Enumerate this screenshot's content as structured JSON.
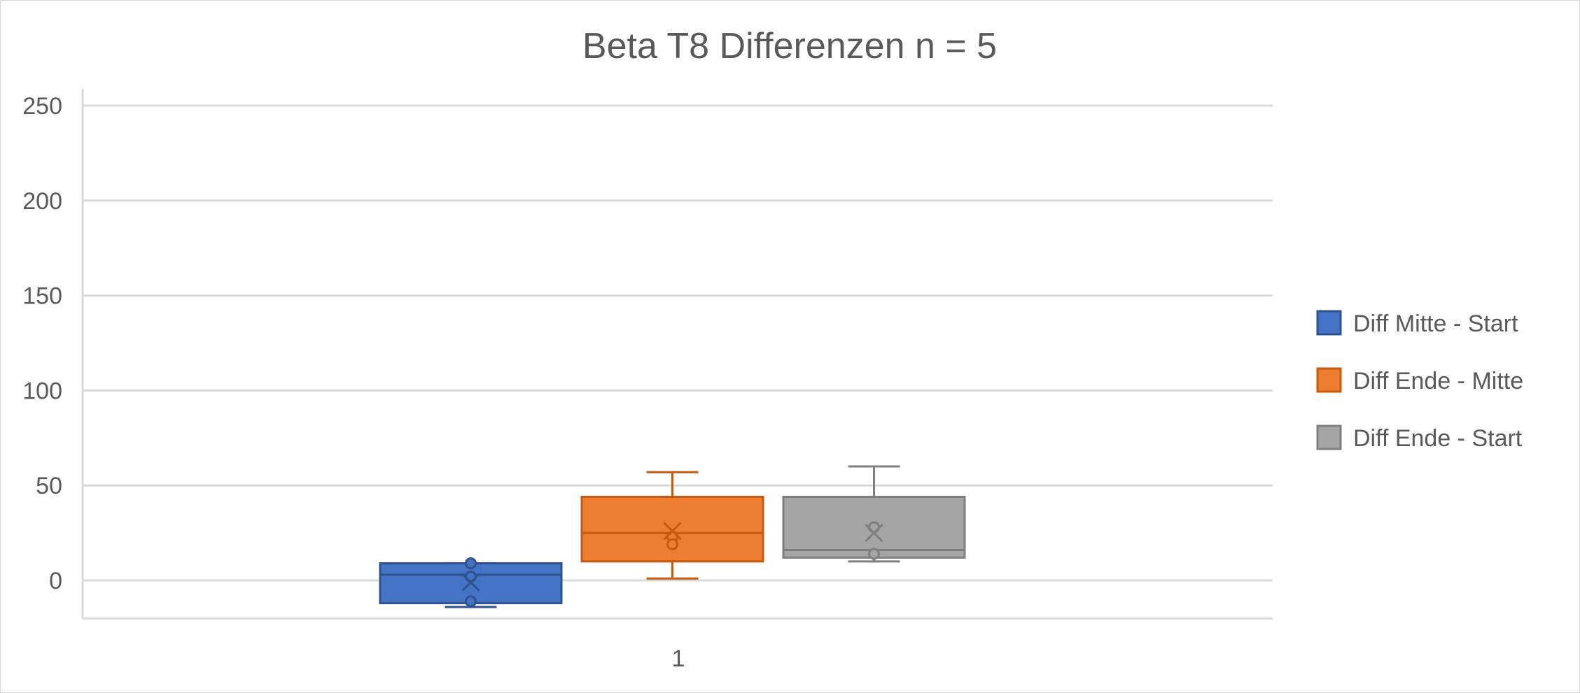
{
  "chart_data": {
    "type": "box",
    "title": "Beta T8 Differenzen n = 5",
    "xlabel": "",
    "ylabel": "",
    "categories": [
      "1"
    ],
    "ylim": [
      -20,
      250
    ],
    "yticks": [
      0,
      50,
      100,
      150,
      200,
      250
    ],
    "yticks_labels": [
      "0",
      "50",
      "100",
      "150",
      "200",
      "250"
    ],
    "grid": true,
    "legend_position": "right",
    "series": [
      {
        "name": "Diff Mitte - Start",
        "color": "#4472c4",
        "whisker_low": -14,
        "q1": -12,
        "median": 3,
        "q3": 9,
        "whisker_high": 9,
        "mean": -1,
        "points": [
          9,
          2,
          -11
        ]
      },
      {
        "name": "Diff Ende - Mitte",
        "color": "#ed7d31",
        "whisker_low": 1,
        "q1": 10,
        "median": 25,
        "q3": 44,
        "whisker_high": 57,
        "mean": 26,
        "points": [
          23,
          19
        ]
      },
      {
        "name": "Diff Ende - Start",
        "color": "#a5a5a5",
        "whisker_low": 10,
        "q1": 12,
        "median": 16,
        "q3": 44,
        "whisker_high": 60,
        "mean": 25,
        "points": [
          28,
          14
        ]
      }
    ]
  }
}
